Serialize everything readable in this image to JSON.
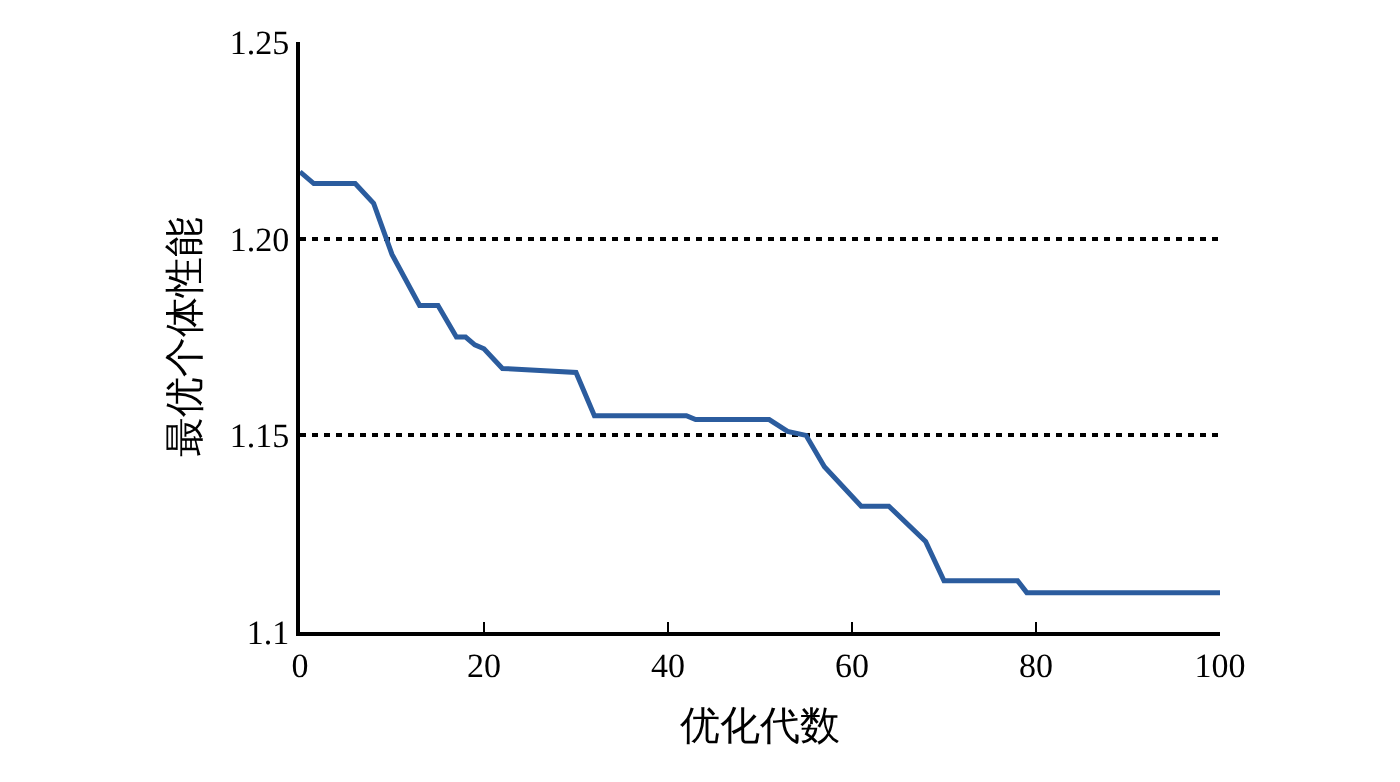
{
  "chart_data": {
    "type": "line",
    "xlabel": "优化代数",
    "ylabel": "最优个体性能",
    "x": [
      0,
      1.5,
      6,
      8,
      10,
      13,
      15,
      17,
      18,
      19,
      20,
      22,
      30,
      32,
      42,
      43,
      51,
      53,
      55,
      57,
      61,
      64,
      68,
      70,
      78,
      79,
      100
    ],
    "series": [
      {
        "color": "#2b5c9e",
        "values": [
          1.217,
          1.214,
          1.214,
          1.209,
          1.196,
          1.183,
          1.183,
          1.175,
          1.175,
          1.173,
          1.172,
          1.167,
          1.166,
          1.155,
          1.155,
          1.154,
          1.154,
          1.151,
          1.15,
          1.142,
          1.132,
          1.132,
          1.123,
          1.113,
          1.113,
          1.11,
          1.11
        ]
      }
    ],
    "xlim": [
      0,
      100
    ],
    "xticks": [
      0,
      20,
      40,
      60,
      80,
      100
    ],
    "ylim": [
      1.1,
      1.25
    ],
    "yticks": [
      {
        "value": 1.1,
        "label": "1.1"
      },
      {
        "value": 1.15,
        "label": "1.15"
      },
      {
        "value": 1.2,
        "label": "1.20"
      },
      {
        "value": 1.25,
        "label": "1.25"
      }
    ],
    "grid": "y",
    "line_style": "solid",
    "marker": "none"
  }
}
